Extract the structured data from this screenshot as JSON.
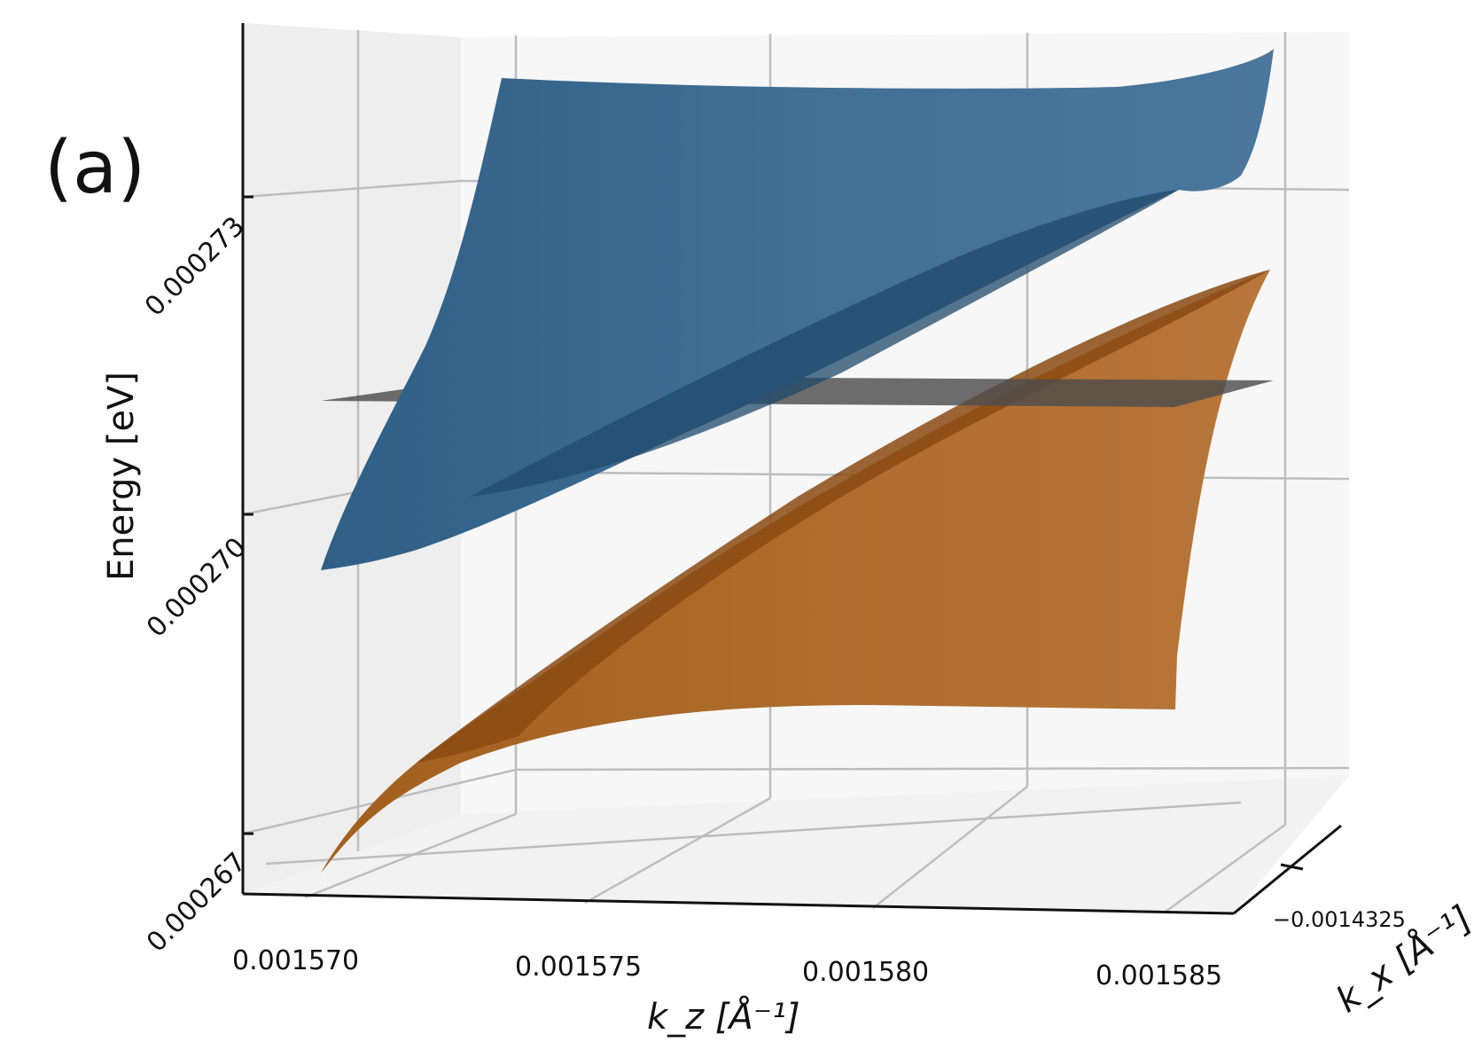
{
  "chart_data": {
    "type": "surface",
    "panel_label": "(a)",
    "xlabel": "k_z [Å⁻¹]",
    "ylabel": "Energy [eV]",
    "zlabel": "k_x [Å⁻¹]",
    "x_ticks": [
      "0.001570",
      "0.001575",
      "0.001580",
      "0.001585"
    ],
    "y_ticks": [
      "0.000267",
      "0.000270",
      "0.000273"
    ],
    "z_ticks": [
      "−0.0014325"
    ],
    "xlim": [
      0.001569,
      0.0015855
    ],
    "ylim": [
      0.000267,
      0.0002745
    ],
    "grid": true,
    "series": [
      {
        "kind": "upper-band",
        "color": "#3d6b91"
      },
      {
        "kind": "lower-band",
        "color": "#b5722f"
      },
      {
        "kind": "plane",
        "color": "#5a5a5a"
      }
    ]
  }
}
